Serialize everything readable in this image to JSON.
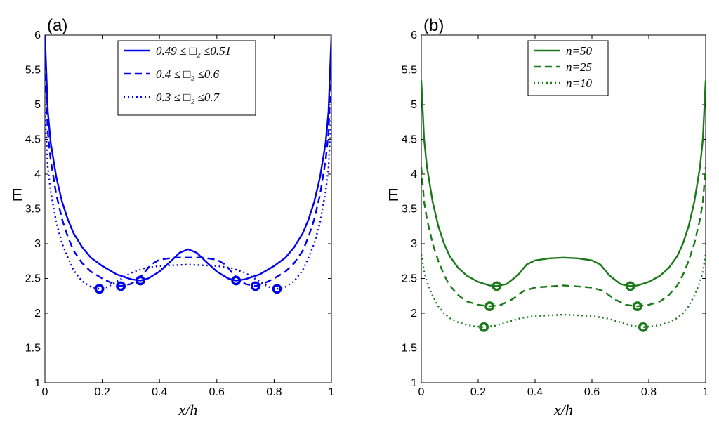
{
  "chart_data": [
    {
      "type": "line",
      "panel_label": "(a)",
      "xlabel": "x/h",
      "ylabel": "E",
      "xlim": [
        0,
        1
      ],
      "ylim": [
        1,
        6
      ],
      "xticks": [
        "0",
        "0.2",
        "0.4",
        "0.6",
        "0.8",
        "1"
      ],
      "yticks": [
        "1",
        "1.5",
        "2",
        "2.5",
        "3",
        "3.5",
        "4",
        "4.5",
        "5",
        "5.5",
        "6"
      ],
      "grid": false,
      "legend": "top-center",
      "color": "#0000ee",
      "series": [
        {
          "name": "0.49 ≤ □₂ ≤0.51",
          "dash": "solid",
          "x": [
            0,
            0.01,
            0.02,
            0.04,
            0.06,
            0.08,
            0.1,
            0.13,
            0.16,
            0.2,
            0.25,
            0.3,
            0.333,
            0.36,
            0.4,
            0.44,
            0.47,
            0.5,
            0.53,
            0.56,
            0.6,
            0.64,
            0.667,
            0.7,
            0.75,
            0.8,
            0.84,
            0.87,
            0.9,
            0.92,
            0.94,
            0.96,
            0.98,
            0.99,
            1
          ],
          "y": [
            6.0,
            4.9,
            4.45,
            3.95,
            3.6,
            3.35,
            3.15,
            2.95,
            2.8,
            2.68,
            2.56,
            2.49,
            2.47,
            2.5,
            2.6,
            2.75,
            2.87,
            2.92,
            2.87,
            2.75,
            2.6,
            2.5,
            2.47,
            2.49,
            2.56,
            2.68,
            2.8,
            2.95,
            3.15,
            3.35,
            3.6,
            3.95,
            4.45,
            4.9,
            6.0
          ],
          "markers": [
            [
              0.333,
              2.47
            ],
            [
              0.667,
              2.47
            ]
          ]
        },
        {
          "name": "0.4 ≤ □₂ ≤0.6",
          "dash": "dashed",
          "x": [
            0,
            0.01,
            0.02,
            0.04,
            0.06,
            0.08,
            0.1,
            0.13,
            0.16,
            0.2,
            0.24,
            0.265,
            0.3,
            0.34,
            0.37,
            0.4,
            0.45,
            0.5,
            0.55,
            0.6,
            0.63,
            0.66,
            0.7,
            0.735,
            0.76,
            0.8,
            0.84,
            0.87,
            0.9,
            0.92,
            0.94,
            0.96,
            0.98,
            0.99,
            1
          ],
          "y": [
            5.6,
            4.6,
            4.2,
            3.7,
            3.35,
            3.1,
            2.9,
            2.72,
            2.6,
            2.5,
            2.42,
            2.39,
            2.42,
            2.55,
            2.7,
            2.77,
            2.8,
            2.8,
            2.8,
            2.77,
            2.7,
            2.55,
            2.42,
            2.39,
            2.42,
            2.5,
            2.6,
            2.72,
            2.9,
            3.1,
            3.35,
            3.7,
            4.2,
            4.6,
            5.6
          ],
          "markers": [
            [
              0.265,
              2.39
            ],
            [
              0.735,
              2.39
            ]
          ]
        },
        {
          "name": "0.3 ≤ □₂ ≤0.7",
          "dash": "dotted",
          "x": [
            0,
            0.01,
            0.02,
            0.04,
            0.06,
            0.08,
            0.1,
            0.13,
            0.16,
            0.19,
            0.22,
            0.26,
            0.3,
            0.35,
            0.4,
            0.5,
            0.6,
            0.65,
            0.7,
            0.74,
            0.78,
            0.81,
            0.84,
            0.87,
            0.9,
            0.92,
            0.94,
            0.96,
            0.98,
            0.99,
            1
          ],
          "y": [
            4.9,
            4.1,
            3.75,
            3.3,
            3.0,
            2.8,
            2.62,
            2.46,
            2.38,
            2.35,
            2.38,
            2.48,
            2.58,
            2.65,
            2.68,
            2.7,
            2.68,
            2.65,
            2.58,
            2.48,
            2.38,
            2.35,
            2.38,
            2.46,
            2.62,
            2.8,
            3.0,
            3.3,
            3.75,
            4.1,
            4.9
          ],
          "markers": [
            [
              0.19,
              2.35
            ],
            [
              0.81,
              2.35
            ]
          ]
        }
      ]
    },
    {
      "type": "line",
      "panel_label": "(b)",
      "xlabel": "x/h",
      "ylabel": "E",
      "xlim": [
        0,
        1
      ],
      "ylim": [
        1,
        6
      ],
      "xticks": [
        "0",
        "0.2",
        "0.4",
        "0.6",
        "0.8",
        "1"
      ],
      "yticks": [
        "1",
        "1.5",
        "2",
        "2.5",
        "3",
        "3.5",
        "4",
        "4.5",
        "5",
        "5.5",
        "6"
      ],
      "grid": false,
      "legend": "top-center",
      "color": "#1a7a1a",
      "series": [
        {
          "name": "n=50",
          "dash": "solid",
          "x": [
            0,
            0.01,
            0.02,
            0.04,
            0.06,
            0.08,
            0.1,
            0.13,
            0.16,
            0.2,
            0.24,
            0.265,
            0.3,
            0.34,
            0.37,
            0.4,
            0.45,
            0.5,
            0.55,
            0.6,
            0.63,
            0.66,
            0.7,
            0.735,
            0.76,
            0.8,
            0.84,
            0.87,
            0.9,
            0.92,
            0.94,
            0.96,
            0.98,
            0.99,
            1
          ],
          "y": [
            5.35,
            4.5,
            4.1,
            3.6,
            3.25,
            3.0,
            2.82,
            2.65,
            2.54,
            2.45,
            2.4,
            2.39,
            2.42,
            2.55,
            2.7,
            2.76,
            2.79,
            2.8,
            2.79,
            2.76,
            2.7,
            2.55,
            2.42,
            2.39,
            2.4,
            2.45,
            2.54,
            2.65,
            2.82,
            3.0,
            3.25,
            3.6,
            4.1,
            4.5,
            5.35
          ],
          "markers": [
            [
              0.265,
              2.39
            ],
            [
              0.735,
              2.39
            ]
          ]
        },
        {
          "name": "n=25",
          "dash": "dashed",
          "x": [
            0,
            0.01,
            0.02,
            0.04,
            0.06,
            0.08,
            0.1,
            0.13,
            0.16,
            0.2,
            0.24,
            0.28,
            0.32,
            0.36,
            0.4,
            0.5,
            0.6,
            0.64,
            0.68,
            0.72,
            0.76,
            0.8,
            0.84,
            0.87,
            0.9,
            0.92,
            0.94,
            0.96,
            0.98,
            0.99,
            1
          ],
          "y": [
            4.1,
            3.6,
            3.35,
            3.0,
            2.75,
            2.55,
            2.4,
            2.26,
            2.17,
            2.12,
            2.1,
            2.12,
            2.2,
            2.32,
            2.37,
            2.4,
            2.37,
            2.32,
            2.2,
            2.12,
            2.1,
            2.12,
            2.17,
            2.26,
            2.4,
            2.55,
            2.75,
            3.0,
            3.35,
            3.6,
            4.1
          ],
          "markers": [
            [
              0.24,
              2.1
            ],
            [
              0.76,
              2.1
            ]
          ]
        },
        {
          "name": "n=10",
          "dash": "dotted",
          "x": [
            0,
            0.01,
            0.02,
            0.04,
            0.06,
            0.08,
            0.1,
            0.13,
            0.16,
            0.19,
            0.22,
            0.26,
            0.3,
            0.35,
            0.4,
            0.5,
            0.6,
            0.65,
            0.7,
            0.74,
            0.78,
            0.81,
            0.84,
            0.87,
            0.9,
            0.92,
            0.94,
            0.96,
            0.98,
            0.99,
            1
          ],
          "y": [
            2.85,
            2.6,
            2.45,
            2.25,
            2.1,
            2.0,
            1.93,
            1.87,
            1.83,
            1.81,
            1.8,
            1.82,
            1.87,
            1.93,
            1.96,
            1.98,
            1.96,
            1.93,
            1.87,
            1.82,
            1.8,
            1.81,
            1.83,
            1.87,
            1.93,
            2.0,
            2.1,
            2.25,
            2.45,
            2.6,
            2.85
          ],
          "markers": [
            [
              0.22,
              1.8
            ],
            [
              0.78,
              1.8
            ]
          ]
        }
      ]
    }
  ]
}
